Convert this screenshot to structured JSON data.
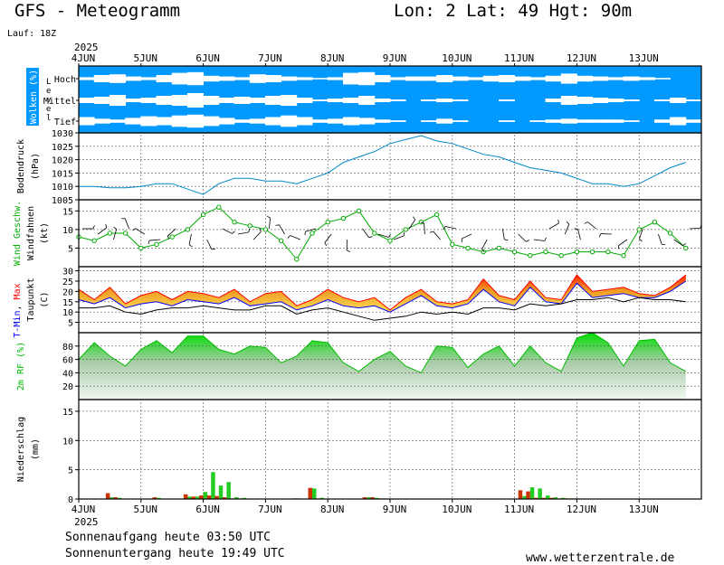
{
  "header": {
    "title": "GFS - Meteogramm",
    "location": "Lon: 2 Lat: 49 Hgt: 90m",
    "run": "Lauf: 18Z"
  },
  "year": "2025",
  "dates": [
    "4JUN",
    "5JUN",
    "6JUN",
    "7JUN",
    "8JUN",
    "9JUN",
    "10JUN",
    "11JUN",
    "12JUN",
    "13JUN"
  ],
  "footer": {
    "sunrise": "Sonnenaufgang heute 03:50 UTC",
    "sunset": "Sonnenuntergang heute 19:49 UTC",
    "site": "www.wetterzentrale.de"
  },
  "colors": {
    "cloud_sky": "#0099ff",
    "pressure": "#0088cc",
    "wind": "#00aa00",
    "tmin": "#0000ff",
    "tmax": "#ff0000",
    "rh": "#00bb00",
    "precip_green": "#22cc22",
    "precip_red": "#cc3300"
  },
  "chart_data": [
    {
      "type": "heatmap",
      "ylabel": "Wolken (%)",
      "level_label": "Level",
      "levels": [
        "Hoch",
        "Mittel",
        "Tief"
      ],
      "note": "clouds drawn as white bands on blue; cover fraction per 6h step (0..1)",
      "x": [
        0,
        6,
        12,
        18,
        24,
        30,
        36,
        42,
        48,
        54,
        60,
        66,
        72,
        78,
        84,
        90,
        96,
        102,
        108,
        114,
        120,
        126,
        132,
        138,
        144,
        150,
        156,
        162,
        168,
        174,
        180,
        186,
        192,
        198,
        204,
        210,
        216,
        222,
        228,
        234
      ],
      "cover": {
        "Hoch": [
          0.2,
          0.5,
          0.6,
          0.3,
          0.2,
          0.5,
          0.8,
          0.9,
          0.4,
          0.3,
          0.2,
          0.6,
          0.5,
          0.3,
          0.2,
          0.1,
          0.2,
          0.8,
          0.9,
          0.5,
          0.2,
          0.3,
          0.3,
          0.5,
          0.3,
          0.2,
          0.4,
          0.5,
          0.3,
          0.2,
          0.4,
          0.7,
          0.4,
          0.3,
          0.2,
          0.3,
          0.2,
          0.1,
          0.0,
          0.0
        ],
        "Mittel": [
          0.3,
          0.4,
          0.6,
          0.2,
          0.3,
          0.5,
          0.6,
          0.8,
          0.5,
          0.3,
          0.4,
          0.3,
          0.5,
          0.6,
          0.3,
          0.1,
          0.2,
          0.3,
          0.5,
          0.2,
          0.1,
          0.0,
          0.1,
          0.2,
          0.1,
          0.0,
          0.0,
          0.1,
          0.0,
          0.0,
          0.2,
          0.5,
          0.4,
          0.3,
          0.2,
          0.1,
          0.0,
          0.1,
          0.3,
          0.1
        ],
        "Tief": [
          0.5,
          0.3,
          0.2,
          0.4,
          0.6,
          0.5,
          0.7,
          0.8,
          0.6,
          0.4,
          0.2,
          0.3,
          0.5,
          0.7,
          0.5,
          0.2,
          0.3,
          0.5,
          0.4,
          0.2,
          0.1,
          0.0,
          0.1,
          0.3,
          0.1,
          0.0,
          0.0,
          0.1,
          0.0,
          0.1,
          0.2,
          0.3,
          0.2,
          0.2,
          0.2,
          0.1,
          0.0,
          0.2,
          0.5,
          0.2
        ]
      }
    },
    {
      "type": "line",
      "ylabel": "Bodendruck (hPa)",
      "ylim": [
        1005,
        1030
      ],
      "yticks": [
        1005,
        1010,
        1015,
        1020,
        1025,
        1030
      ],
      "x": [
        0,
        6,
        12,
        18,
        24,
        30,
        36,
        42,
        48,
        54,
        60,
        66,
        72,
        78,
        84,
        90,
        96,
        102,
        108,
        114,
        120,
        126,
        132,
        138,
        144,
        150,
        156,
        162,
        168,
        174,
        180,
        186,
        192,
        198,
        204,
        210,
        216,
        222,
        228,
        234
      ],
      "series": [
        {
          "name": "",
          "values": [
            1010,
            1010,
            1009.5,
            1009.5,
            1010,
            1011,
            1011,
            1009,
            1007,
            1011,
            1013,
            1013,
            1012,
            1012,
            1011,
            1013,
            1015,
            1019,
            1021,
            1023,
            1026,
            1027.5,
            1029,
            1027,
            1026,
            1024,
            1022,
            1021,
            1019,
            1017,
            1016,
            1015,
            1013,
            1011,
            1011,
            1010,
            1011,
            1014,
            1017,
            1019
          ]
        }
      ]
    },
    {
      "type": "line",
      "ylabel": "Wind Geschw. (kt)",
      "ylabel2": "Windfahnen",
      "ylim": [
        0,
        18
      ],
      "yticks": [
        5,
        10,
        15
      ],
      "x": [
        0,
        6,
        12,
        18,
        24,
        30,
        36,
        42,
        48,
        54,
        60,
        66,
        72,
        78,
        84,
        90,
        96,
        102,
        108,
        114,
        120,
        126,
        132,
        138,
        144,
        150,
        156,
        162,
        168,
        174,
        180,
        186,
        192,
        198,
        204,
        210,
        216,
        222,
        228,
        234
      ],
      "series": [
        {
          "name": "Wind Geschw.",
          "values": [
            8,
            7,
            9,
            9,
            5,
            6,
            8,
            10,
            14,
            16,
            12,
            11,
            10,
            7,
            2,
            9,
            12,
            13,
            15,
            9,
            7,
            10,
            12,
            14,
            6,
            5,
            4,
            5,
            4,
            3,
            4,
            3,
            4,
            4,
            4,
            3,
            10,
            12,
            9,
            5
          ]
        }
      ]
    },
    {
      "type": "area",
      "ylabel": "T-Min, Max (C)",
      "ylabel2": "Taupunkt",
      "ylim": [
        0,
        32
      ],
      "yticks": [
        5,
        10,
        15,
        20,
        25,
        30
      ],
      "x": [
        0,
        6,
        12,
        18,
        24,
        30,
        36,
        42,
        48,
        54,
        60,
        66,
        72,
        78,
        84,
        90,
        96,
        102,
        108,
        114,
        120,
        126,
        132,
        138,
        144,
        150,
        156,
        162,
        168,
        174,
        180,
        186,
        192,
        198,
        204,
        210,
        216,
        222,
        228,
        234
      ],
      "series": [
        {
          "name": "T-Min",
          "values": [
            16,
            14,
            17,
            12,
            14,
            15,
            13,
            16,
            15,
            14,
            17,
            13,
            14,
            15,
            11,
            13,
            16,
            13,
            12,
            13,
            10,
            14,
            18,
            13,
            12,
            14,
            21,
            15,
            13,
            22,
            15,
            14,
            24,
            17,
            18,
            19,
            17,
            17,
            20,
            25
          ]
        },
        {
          "name": "Max",
          "values": [
            21,
            16,
            22,
            14,
            18,
            20,
            16,
            20,
            19,
            17,
            21,
            15,
            19,
            20,
            13,
            16,
            21,
            17,
            15,
            17,
            11,
            17,
            21,
            15,
            14,
            16,
            26,
            18,
            16,
            25,
            17,
            16,
            28,
            20,
            21,
            22,
            19,
            18,
            22,
            28
          ]
        },
        {
          "name": "Taupunkt",
          "values": [
            12,
            12,
            13,
            10,
            9,
            11,
            12,
            12,
            13,
            12,
            11,
            11,
            13,
            13,
            9,
            11,
            12,
            10,
            8,
            6,
            7,
            8,
            10,
            9,
            10,
            9,
            12,
            12,
            11,
            14,
            13,
            14,
            16,
            16,
            17,
            15,
            17,
            16,
            16,
            15
          ]
        }
      ]
    },
    {
      "type": "area",
      "ylabel": "2m RF (%)",
      "ylim": [
        0,
        100
      ],
      "yticks": [
        20,
        40,
        60,
        80,
        100
      ],
      "x": [
        0,
        6,
        12,
        18,
        24,
        30,
        36,
        42,
        48,
        54,
        60,
        66,
        72,
        78,
        84,
        90,
        96,
        102,
        108,
        114,
        120,
        126,
        132,
        138,
        144,
        150,
        156,
        162,
        168,
        174,
        180,
        186,
        192,
        198,
        204,
        210,
        216,
        222,
        228,
        234
      ],
      "series": [
        {
          "name": "",
          "values": [
            60,
            85,
            65,
            50,
            75,
            88,
            70,
            95,
            95,
            75,
            68,
            80,
            78,
            55,
            65,
            88,
            85,
            55,
            42,
            60,
            72,
            50,
            40,
            80,
            78,
            48,
            68,
            80,
            50,
            80,
            55,
            42,
            92,
            100,
            85,
            50,
            88,
            90,
            55,
            42
          ]
        }
      ]
    },
    {
      "type": "bar",
      "ylabel": "Niederschlag (mm)",
      "ylim": [
        0,
        17
      ],
      "yticks": [
        0,
        5,
        10,
        15
      ],
      "x": [
        12,
        15,
        30,
        42,
        45,
        48,
        51,
        54,
        57,
        60,
        63,
        84,
        90,
        93,
        111,
        114,
        117,
        171,
        174,
        177,
        180,
        183,
        186,
        189,
        192
      ],
      "series": [
        {
          "name": "green",
          "values": [
            0.3,
            0.2,
            0.2,
            0.4,
            0.4,
            1.2,
            4.6,
            2.3,
            2.9,
            0.3,
            0.2,
            0.1,
            1.8,
            0.2,
            0.3,
            0.2,
            0.1,
            0.5,
            2.0,
            1.8,
            0.6,
            0.3,
            0.2,
            0.1,
            0.1
          ]
        },
        {
          "name": "red",
          "values": [
            1.0,
            0.3,
            0.3,
            0.8,
            0.4,
            0.6,
            0.6,
            0.5,
            0.3,
            0.1,
            0.1,
            0.1,
            1.9,
            0.1,
            0.3,
            0.3,
            0.1,
            1.5,
            1.3,
            0.2,
            0.2,
            0.2,
            0.1,
            0.1,
            0.1
          ]
        }
      ]
    }
  ]
}
